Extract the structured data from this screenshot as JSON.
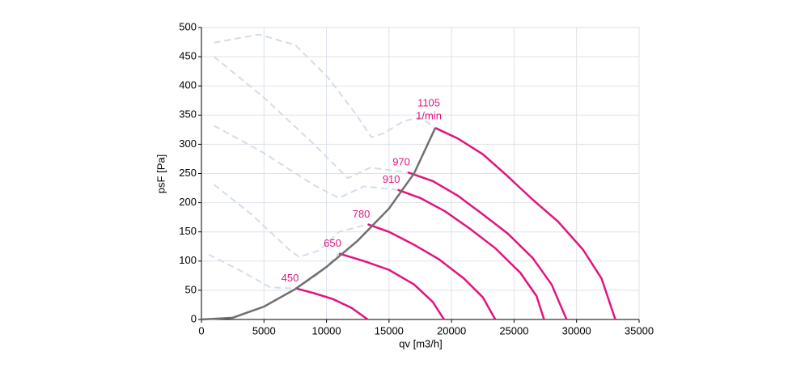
{
  "chart_data": {
    "type": "line",
    "x_label": "qv [m3/h]",
    "y_label": "psF [Pa]",
    "xlim": [
      0,
      35000
    ],
    "xticks": [
      0,
      5000,
      10000,
      15000,
      20000,
      25000,
      30000,
      35000
    ],
    "ylim": [
      0,
      500
    ],
    "yticks": [
      0,
      50,
      100,
      150,
      200,
      250,
      300,
      350,
      400,
      450,
      500
    ],
    "grid": true,
    "speed_unit": "1/min",
    "series": [
      {
        "name": "450",
        "color": "#e0157f",
        "x": [
          7600,
          9000,
          10500,
          12000,
          13300
        ],
        "values": [
          53,
          45,
          35,
          20,
          0
        ]
      },
      {
        "name": "650",
        "color": "#e0157f",
        "x": [
          11000,
          13000,
          15000,
          17000,
          18500,
          19400
        ],
        "values": [
          113,
          100,
          85,
          60,
          30,
          0
        ]
      },
      {
        "name": "780",
        "color": "#e0157f",
        "x": [
          13300,
          15000,
          17000,
          19000,
          21000,
          22500,
          23500
        ],
        "values": [
          163,
          150,
          128,
          103,
          70,
          38,
          0
        ]
      },
      {
        "name": "910",
        "color": "#e0157f",
        "x": [
          15700,
          17500,
          19500,
          21500,
          23500,
          25500,
          26800,
          27400
        ],
        "values": [
          222,
          208,
          185,
          155,
          122,
          80,
          40,
          0
        ]
      },
      {
        "name": "970",
        "color": "#e0157f",
        "x": [
          16500,
          18500,
          20500,
          22500,
          24500,
          26500,
          28000,
          29200
        ],
        "values": [
          252,
          237,
          212,
          180,
          147,
          105,
          60,
          0
        ]
      },
      {
        "name": "1105",
        "color": "#e0157f",
        "x": [
          18700,
          20500,
          22500,
          24500,
          26500,
          28500,
          30500,
          32000,
          33100
        ],
        "values": [
          328,
          310,
          283,
          245,
          205,
          168,
          120,
          70,
          0
        ]
      },
      {
        "color": "#707070",
        "x": [
          0,
          2500,
          5000,
          7500,
          10000,
          12500,
          15000,
          17000,
          18700
        ],
        "values": [
          0,
          3,
          22,
          52,
          90,
          135,
          190,
          250,
          328
        ]
      },
      {
        "color": "#d5dde8",
        "dashed": true,
        "x": [
          1000,
          4600,
          7500,
          10100,
          12300,
          13600,
          14600,
          16200,
          17500,
          18700
        ],
        "values": [
          474,
          488,
          470,
          415,
          353,
          312,
          319,
          340,
          346,
          328
        ]
      },
      {
        "color": "#d5dde8",
        "dashed": true,
        "x": [
          1000,
          5000,
          9000,
          11700,
          13500,
          16500
        ],
        "values": [
          450,
          380,
          300,
          242,
          260,
          252
        ]
      },
      {
        "color": "#d5dde8",
        "dashed": true,
        "x": [
          1000,
          5000,
          9000,
          11000,
          13000,
          15700
        ],
        "values": [
          332,
          285,
          230,
          208,
          228,
          222
        ]
      },
      {
        "color": "#d5dde8",
        "dashed": true,
        "x": [
          1000,
          4000,
          7000,
          7800,
          9400,
          11000,
          13300
        ],
        "values": [
          231,
          180,
          120,
          107,
          118,
          150,
          163
        ]
      },
      {
        "color": "#d5dde8",
        "dashed": true,
        "x": [
          600,
          3000,
          5500,
          7600,
          9500,
          11000
        ],
        "values": [
          111,
          85,
          55,
          53,
          80,
          113
        ]
      }
    ]
  }
}
